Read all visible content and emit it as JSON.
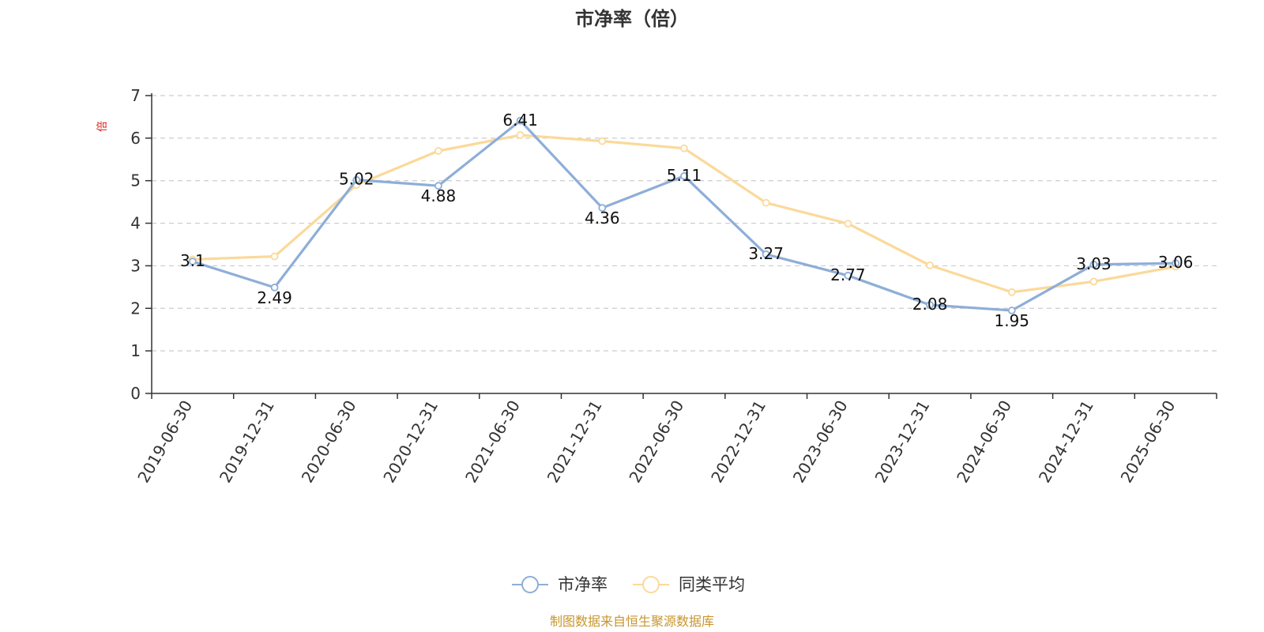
{
  "chart_data": {
    "type": "line",
    "title": "市净率（倍）",
    "ylabel": "倍",
    "xlabel": "",
    "ylim": [
      0,
      7
    ],
    "yticks": [
      0,
      1,
      2,
      3,
      4,
      5,
      6,
      7
    ],
    "grid": true,
    "legend_position": "bottom-center",
    "categories": [
      "2019-06-30",
      "2019-12-31",
      "2020-06-30",
      "2020-12-31",
      "2021-06-30",
      "2021-12-31",
      "2022-06-30",
      "2022-12-31",
      "2023-06-30",
      "2023-12-31",
      "2024-06-30",
      "2024-12-31",
      "2025-06-30"
    ],
    "series": [
      {
        "name": "市净率",
        "color": "#8eaed8",
        "values": [
          3.1,
          2.49,
          5.02,
          4.88,
          6.41,
          4.36,
          5.11,
          3.27,
          2.77,
          2.08,
          1.95,
          3.03,
          3.06
        ],
        "labels": [
          "3.1",
          "2.49",
          "5.02",
          "4.88",
          "6.41",
          "4.36",
          "5.11",
          "3.27",
          "2.77",
          "2.08",
          "1.95",
          "3.03",
          "3.06"
        ]
      },
      {
        "name": "同类平均",
        "color": "#fbd99a",
        "values": [
          3.15,
          3.22,
          4.9,
          5.7,
          6.07,
          5.93,
          5.76,
          4.48,
          3.99,
          3.01,
          2.38,
          2.63,
          2.98
        ]
      }
    ]
  },
  "source_text": "制图数据来自恒生聚源数据库",
  "source_color": "#c8962e",
  "unit_color": "#e0201b"
}
